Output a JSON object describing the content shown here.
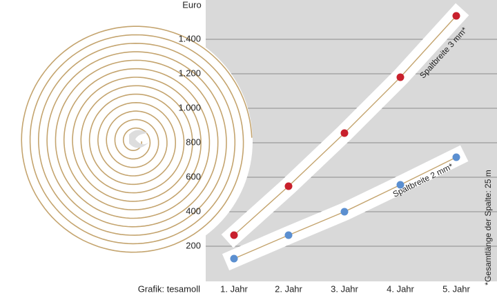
{
  "chart_data": {
    "type": "line",
    "y_label": "Euro",
    "source": "Grafik: tesamoll",
    "footnote": "*Gesamtlänge der Spalte: 25 m",
    "categories": [
      "1. Jahr",
      "2. Jahr",
      "3. Jahr",
      "4. Jahr",
      "5. Jahr"
    ],
    "series": [
      {
        "name": "Spaltbreite 3 mm*",
        "color": "#c8202c",
        "values": [
          264,
          548,
          856,
          1180,
          1536
        ]
      },
      {
        "name": "Spaltbreite 2 mm*",
        "color": "#5b8fd0",
        "values": [
          128,
          264,
          400,
          556,
          716
        ]
      }
    ],
    "ylim": [
      0,
      1628
    ],
    "yticks": [
      200,
      400,
      600,
      800,
      {
        "value": 1000,
        "label": "1.000"
      },
      {
        "value": 1200,
        "label": "1.200"
      },
      {
        "value": 1400,
        "label": "1.400"
      }
    ],
    "grid": true
  }
}
